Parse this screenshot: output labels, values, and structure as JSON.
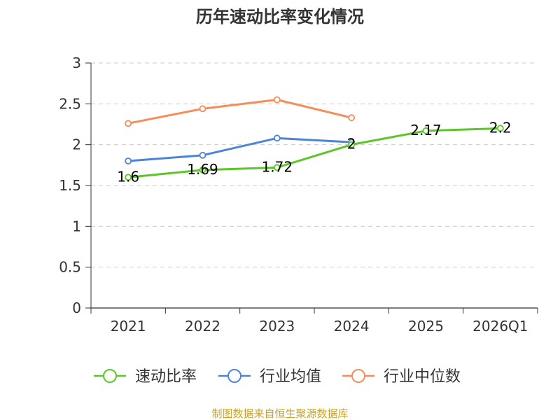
{
  "chart_data": {
    "type": "line",
    "title": "历年速动比率变化情况",
    "categories": [
      "2021",
      "2022",
      "2023",
      "2024",
      "2025",
      "2026Q1"
    ],
    "yticks": [
      "0",
      "0.5",
      "1",
      "1.5",
      "2",
      "2.5",
      "3"
    ],
    "ylim": [
      0,
      3
    ],
    "xlabel": "",
    "ylabel": "",
    "grid": true,
    "legend_position": "bottom",
    "series": [
      {
        "name": "速动比率",
        "color": "#5cc628",
        "values": [
          1.6,
          1.69,
          1.72,
          2.0,
          2.17,
          2.2
        ],
        "labels": [
          "1.6",
          "1.69",
          "1.72",
          "2",
          "2.17",
          "2.2"
        ]
      },
      {
        "name": "行业均值",
        "color": "#4d84d9",
        "values": [
          1.8,
          1.87,
          2.08,
          2.03,
          null,
          null
        ]
      },
      {
        "name": "行业中位数",
        "color": "#f58d5a",
        "values": [
          2.26,
          2.44,
          2.55,
          2.33,
          null,
          null
        ]
      }
    ]
  },
  "footer": {
    "source": "制图数据来自恒生聚源数据库"
  }
}
